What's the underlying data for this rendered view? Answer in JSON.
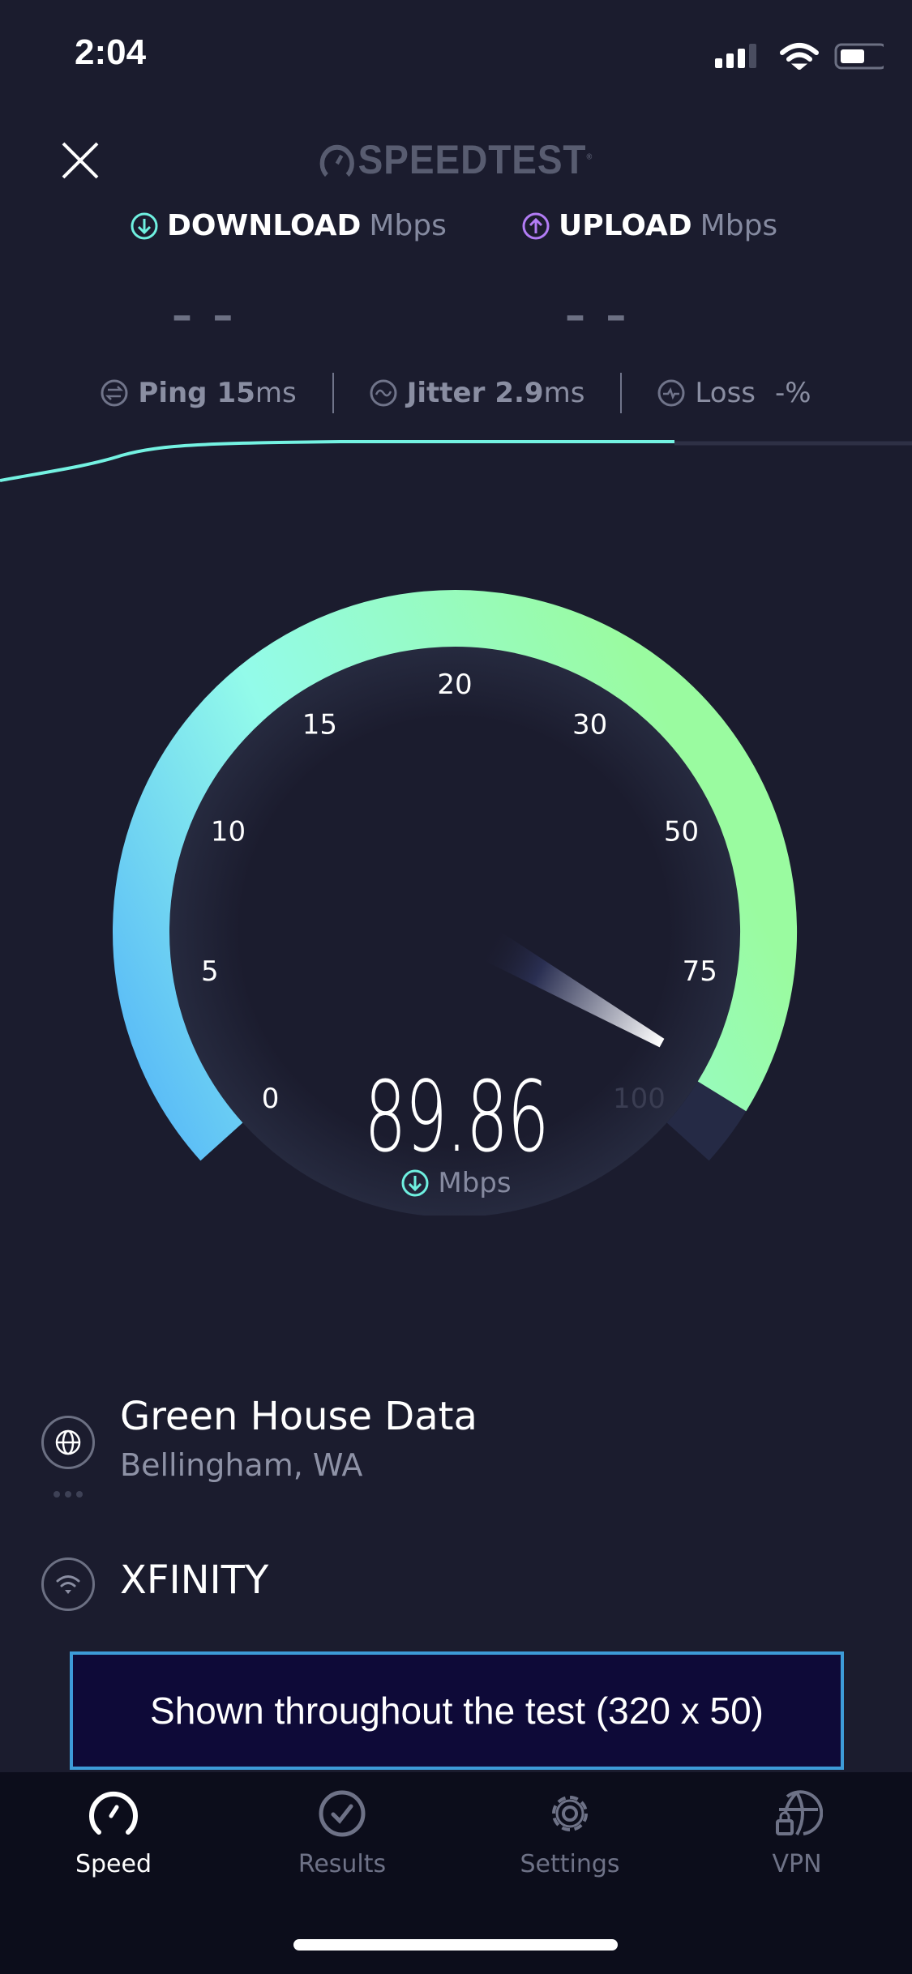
{
  "status_bar": {
    "time": "2:04",
    "icons": [
      "cellular-signal-icon",
      "wifi-icon",
      "battery-icon"
    ]
  },
  "header": {
    "logo_text": "SPEEDTEST",
    "close_icon": "close-icon"
  },
  "results": {
    "download": {
      "label": "DOWNLOAD",
      "unit": "Mbps",
      "value": "– –"
    },
    "upload": {
      "label": "UPLOAD",
      "unit": "Mbps",
      "value": "– –"
    }
  },
  "stats": [
    {
      "label": "Ping",
      "value": "15",
      "unit": "ms",
      "icon": "ping-icon"
    },
    {
      "label": "Jitter",
      "value": "2.9",
      "unit": "ms",
      "icon": "jitter-icon"
    },
    {
      "label": "Loss",
      "value": "-",
      "unit": "%",
      "icon": "loss-icon"
    }
  ],
  "gauge": {
    "ticks": [
      "0",
      "5",
      "10",
      "15",
      "20",
      "30",
      "50",
      "75",
      "100"
    ],
    "current_value": "89.86",
    "needle_value": 89.86,
    "unit": "Mbps",
    "colors": {
      "start": "#55b6f8",
      "mid": "#93fbea",
      "end": "#9afba0",
      "track": "#252a45"
    }
  },
  "server": {
    "name": "Green House Data",
    "location": "Bellingham, WA"
  },
  "isp": {
    "name": "XFINITY"
  },
  "ad": {
    "text": "Shown throughout the test (320 x 50)"
  },
  "tabs": [
    {
      "label": "Speed",
      "icon": "speedometer-icon",
      "active": true
    },
    {
      "label": "Results",
      "icon": "check-circle-icon",
      "active": false
    },
    {
      "label": "Settings",
      "icon": "gear-icon",
      "active": false
    },
    {
      "label": "VPN",
      "icon": "vpn-globe-lock-icon",
      "active": false
    }
  ],
  "colors": {
    "background": "#1b1c2e",
    "accent_download": "#6ff0e0",
    "accent_upload": "#b27cf5",
    "ad_border": "#3d9bd8"
  }
}
